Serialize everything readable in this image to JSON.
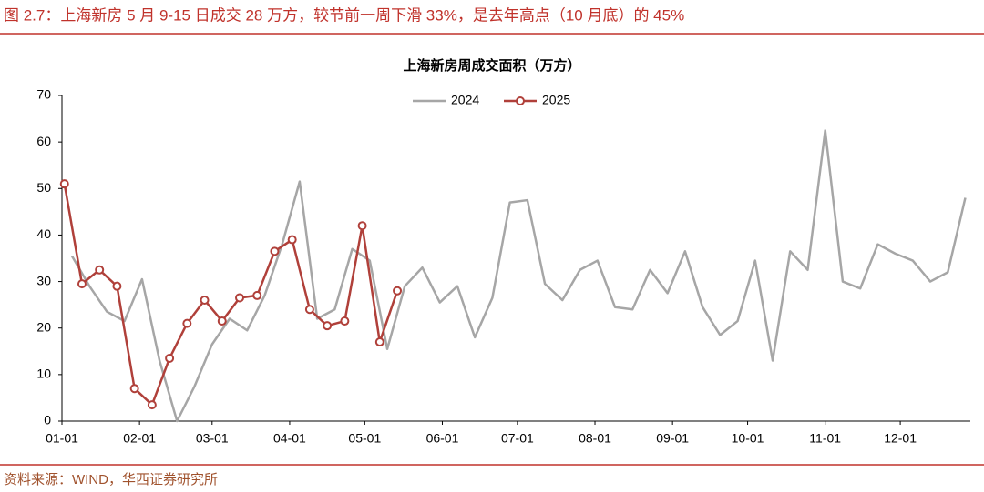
{
  "header": {
    "title": "图 2.7：上海新房 5 月 9-15 日成交 28 万方，较节前一周下滑 33%，是去年高点（10 月底）的 45%"
  },
  "footer": {
    "source": "资料来源：WIND，华西证券研究所"
  },
  "chart_data": {
    "type": "line",
    "title": "上海新房周成交面积（万方）",
    "xlim": [
      0,
      363
    ],
    "xticks": [
      {
        "value": 0,
        "label": "01-01"
      },
      {
        "value": 31,
        "label": "02-01"
      },
      {
        "value": 60,
        "label": "03-01"
      },
      {
        "value": 91,
        "label": "04-01"
      },
      {
        "value": 121,
        "label": "05-01"
      },
      {
        "value": 152,
        "label": "06-01"
      },
      {
        "value": 182,
        "label": "07-01"
      },
      {
        "value": 213,
        "label": "08-01"
      },
      {
        "value": 244,
        "label": "09-01"
      },
      {
        "value": 274,
        "label": "10-01"
      },
      {
        "value": 305,
        "label": "11-01"
      },
      {
        "value": 335,
        "label": "12-01"
      }
    ],
    "ylim": [
      0,
      70
    ],
    "yticks": [
      0,
      10,
      20,
      30,
      40,
      50,
      60,
      70
    ],
    "legend": "top",
    "series": [
      {
        "name": "2024",
        "color": "#a6a6a6",
        "marker": false,
        "x": [
          4,
          11,
          18,
          25,
          32,
          39,
          46,
          53,
          60,
          67,
          74,
          81,
          88,
          95,
          102,
          109,
          116,
          123,
          130,
          137,
          144,
          151,
          158,
          165,
          172,
          179,
          186,
          193,
          200,
          207,
          214,
          221,
          228,
          235,
          242,
          249,
          256,
          263,
          270,
          277,
          284,
          291,
          298,
          305,
          312,
          319,
          326,
          333,
          340,
          347,
          354,
          361
        ],
        "values": [
          35.5,
          29,
          23.5,
          21.5,
          30.5,
          13,
          0,
          7.5,
          16.5,
          22,
          19.5,
          27,
          38,
          51.5,
          22,
          24,
          37,
          34.5,
          15.5,
          29,
          33,
          25.5,
          29,
          18,
          26.5,
          47,
          47.5,
          29.5,
          26,
          32.5,
          34.5,
          24.5,
          24,
          32.5,
          27.5,
          36.5,
          24.5,
          18.5,
          21.5,
          34.5,
          13,
          36.5,
          32.5,
          62.5,
          30,
          28.5,
          38,
          36,
          34.5,
          30,
          32,
          48
        ]
      },
      {
        "name": "2025",
        "color": "#b0403a",
        "marker": true,
        "x": [
          1,
          8,
          15,
          22,
          29,
          36,
          43,
          50,
          57,
          64,
          71,
          78,
          85,
          92,
          99,
          106,
          113,
          120,
          127,
          134
        ],
        "values": [
          51,
          29.5,
          32.5,
          29,
          7,
          3.5,
          13.5,
          21,
          26,
          21.5,
          26.5,
          27,
          36.5,
          39,
          24,
          20.5,
          21.5,
          42,
          17,
          28
        ]
      }
    ]
  }
}
